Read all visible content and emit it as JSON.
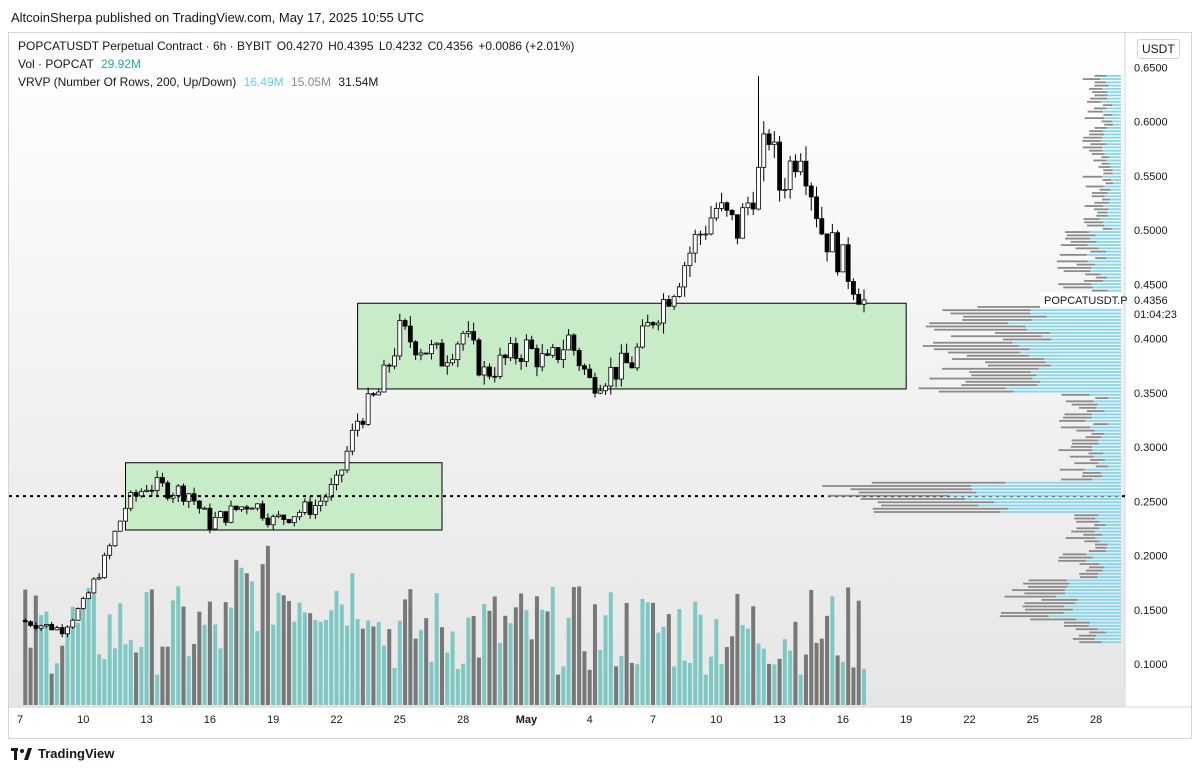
{
  "header": {
    "publisher_line": "AltcoinSherpa published on TradingView.com, May 17, 2025 10:55 UTC"
  },
  "legend": {
    "symbol_line": "POPCATUSDT Perpetual Contract · 6h · BYBIT",
    "o": "O0.4270",
    "h": "H0.4395",
    "l": "L0.4232",
    "c": "C0.4356",
    "chg": "+0.0086 (+2.01%)",
    "vol_label": "Vol · POPCAT",
    "vol_value": "29.92M",
    "vrvp_label": "VRVP (Number Of Rows, 200, Up/Down)",
    "vrvp_up": "16.49M",
    "vrvp_down": "15.05M",
    "vrvp_total": "31.54M"
  },
  "price_scale": {
    "currency": "USDT",
    "ticks": [
      "0.6500",
      "0.6000",
      "0.5500",
      "0.5000",
      "0.4500",
      "0.4000",
      "0.3500",
      "0.3000",
      "0.2500",
      "0.2000",
      "0.1500",
      "0.1000"
    ]
  },
  "last_price": {
    "symbol": "POPCATUSDT.P",
    "price": "0.4356",
    "countdown": "01:04:23"
  },
  "time_axis": {
    "labels": [
      "7",
      "10",
      "13",
      "16",
      "19",
      "22",
      "25",
      "28",
      "May",
      "4",
      "7",
      "10",
      "13",
      "16",
      "19",
      "22",
      "25",
      "28"
    ]
  },
  "footer": {
    "brand": "TradingView"
  },
  "colors": {
    "up": "#26a69a",
    "down": "#000000",
    "zone_fill": "#c8ebc8",
    "vol_up": "#7ec8c3",
    "vol_down": "#787878",
    "profile_up": "#82d6ee",
    "profile_down": "#8a8a8a"
  },
  "chart_data": {
    "type": "candlestick",
    "timeframe": "6h",
    "ylim": [
      0.05,
      0.67
    ],
    "x_range": [
      "Apr 7",
      "May 28"
    ],
    "support_line": 0.2547,
    "zones": [
      {
        "from": "Apr 12",
        "to": "Apr 27",
        "low": 0.2235,
        "high": 0.2855
      },
      {
        "from": "Apr 23",
        "to": "May 19",
        "low": 0.3535,
        "high": 0.4325
      }
    ],
    "key_points": [
      {
        "date": "Apr 7",
        "close": 0.14
      },
      {
        "date": "Apr 9",
        "close": 0.132
      },
      {
        "date": "Apr 10",
        "close": 0.155
      },
      {
        "date": "Apr 11",
        "close": 0.195
      },
      {
        "date": "Apr 12",
        "close": 0.245
      },
      {
        "date": "Apr 13",
        "close": 0.265
      },
      {
        "date": "Apr 15",
        "close": 0.258
      },
      {
        "date": "Apr 16",
        "close": 0.23
      },
      {
        "date": "Apr 18",
        "close": 0.25
      },
      {
        "date": "Apr 19",
        "close": 0.232
      },
      {
        "date": "Apr 21",
        "close": 0.246
      },
      {
        "date": "Apr 22",
        "close": 0.265
      },
      {
        "date": "Apr 23",
        "close": 0.325
      },
      {
        "date": "Apr 24",
        "close": 0.35
      },
      {
        "date": "Apr 25",
        "close": 0.405
      },
      {
        "date": "Apr 27",
        "close": 0.382
      },
      {
        "date": "Apr 28",
        "close": 0.405
      },
      {
        "date": "Apr 29",
        "close": 0.368
      },
      {
        "date": "May 1",
        "close": 0.392
      },
      {
        "date": "May 2",
        "close": 0.375
      },
      {
        "date": "May 3",
        "close": 0.4
      },
      {
        "date": "May 4",
        "close": 0.36
      },
      {
        "date": "May 6",
        "close": 0.378
      },
      {
        "date": "May 7",
        "close": 0.42
      },
      {
        "date": "May 8",
        "close": 0.45
      },
      {
        "date": "May 9",
        "close": 0.49
      },
      {
        "date": "May 10",
        "close": 0.52
      },
      {
        "date": "May 11",
        "close": 0.5
      },
      {
        "date": "May 12",
        "close": 0.55
      },
      {
        "date": "May 12.5",
        "close": 0.59
      },
      {
        "date": "May 13",
        "close": 0.54
      },
      {
        "date": "May 14",
        "close": 0.58
      },
      {
        "date": "May 15",
        "close": 0.5
      },
      {
        "date": "May 16",
        "close": 0.47
      },
      {
        "date": "May 17",
        "close": 0.4356
      }
    ],
    "extremes": {
      "high": 0.642,
      "high_date": "May 12",
      "low": 0.118,
      "low_date": "Apr 7"
    }
  }
}
